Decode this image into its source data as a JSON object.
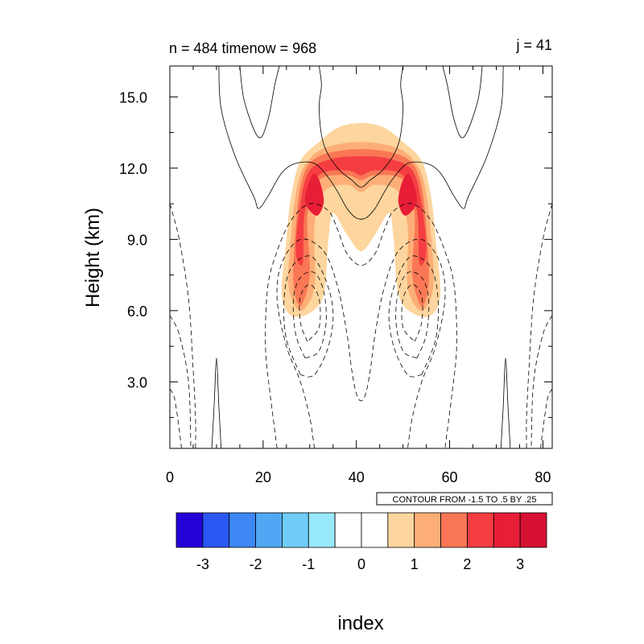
{
  "chart_data": {
    "type": "heatmap",
    "title_left": "n = 484 timenow = 968",
    "title_right": "j = 41",
    "xlabel": "index",
    "ylabel": "Height (km)",
    "xlim": [
      0,
      82
    ],
    "ylim": [
      0.2,
      16.3
    ],
    "x_ticks": [
      0,
      20,
      40,
      60,
      80
    ],
    "y_ticks": [
      3.0,
      6.0,
      9.0,
      12.0,
      15.0
    ],
    "y_tick_labels": [
      "3.0",
      "6.0",
      "9.0",
      "12.0",
      "15.0"
    ],
    "contour_info": "CONTOUR FROM -1.5 TO .5 BY .25",
    "colorbar": {
      "colors": [
        "#2500d8",
        "#2b57f4",
        "#3c87f4",
        "#50a8f4",
        "#70ccf8",
        "#99e9fc",
        "#ffffff",
        "#ffffff",
        "#fdd59e",
        "#fdae77",
        "#f97755",
        "#f43e42",
        "#e81d36",
        "#d61133"
      ],
      "tick_values": [
        -3,
        -2,
        -1,
        0,
        1,
        2,
        3
      ],
      "tick_labels": [
        "-3",
        "-2",
        "-1",
        "0",
        "1",
        "2",
        "3"
      ]
    },
    "filled_regions": [
      {
        "level": 1,
        "color": "#fdd59e",
        "points": [
          [
            24,
            6.7
          ],
          [
            25,
            9.0
          ],
          [
            26,
            10.8
          ],
          [
            28,
            12.3
          ],
          [
            32,
            13.1
          ],
          [
            36,
            13.7
          ],
          [
            41,
            13.9
          ],
          [
            46,
            13.7
          ],
          [
            50,
            13.1
          ],
          [
            54,
            12.3
          ],
          [
            56,
            10.8
          ],
          [
            57,
            9.0
          ],
          [
            58,
            6.7
          ],
          [
            56,
            5.8
          ],
          [
            52,
            5.9
          ],
          [
            49,
            6.7
          ],
          [
            48,
            9.0
          ],
          [
            47,
            10.1
          ],
          [
            44,
            9.2
          ],
          [
            41,
            8.5
          ],
          [
            38,
            9.2
          ],
          [
            35,
            10.1
          ],
          [
            34,
            9.0
          ],
          [
            33,
            6.7
          ],
          [
            30,
            5.9
          ],
          [
            26,
            5.8
          ]
        ]
      },
      {
        "level": 1.5,
        "color": "#fdae77",
        "points": [
          [
            25.5,
            7.0
          ],
          [
            26,
            9.2
          ],
          [
            27.5,
            11.4
          ],
          [
            30,
            12.4
          ],
          [
            34,
            12.9
          ],
          [
            41,
            13.1
          ],
          [
            48,
            12.9
          ],
          [
            52,
            12.4
          ],
          [
            54.5,
            11.4
          ],
          [
            56,
            9.2
          ],
          [
            56.5,
            7.0
          ],
          [
            54,
            6.0
          ],
          [
            51,
            7.0
          ],
          [
            51,
            9.5
          ],
          [
            49,
            11.0
          ],
          [
            44,
            11.3
          ],
          [
            41,
            11.0
          ],
          [
            38,
            11.3
          ],
          [
            33,
            11.0
          ],
          [
            31,
            9.5
          ],
          [
            31,
            7.0
          ],
          [
            28,
            6.0
          ]
        ]
      },
      {
        "level": 2,
        "color": "#f97755",
        "points": [
          [
            26.5,
            7.2
          ],
          [
            27,
            9.5
          ],
          [
            28.5,
            11.6
          ],
          [
            32,
            12.5
          ],
          [
            41,
            12.8
          ],
          [
            50,
            12.5
          ],
          [
            53.5,
            11.6
          ],
          [
            55,
            9.5
          ],
          [
            55.5,
            7.2
          ],
          [
            54,
            6.2
          ],
          [
            52,
            7.5
          ],
          [
            52.5,
            10.0
          ],
          [
            50,
            11.5
          ],
          [
            44,
            11.7
          ],
          [
            41,
            11.5
          ],
          [
            38,
            11.7
          ],
          [
            32,
            11.5
          ],
          [
            29.5,
            10.0
          ],
          [
            30,
            7.5
          ],
          [
            28,
            6.2
          ]
        ]
      },
      {
        "level": 2.5,
        "color": "#f43e42",
        "points": [
          [
            27,
            8.5
          ],
          [
            28,
            10.5
          ],
          [
            30,
            11.9
          ],
          [
            35,
            12.4
          ],
          [
            41,
            12.5
          ],
          [
            47,
            12.4
          ],
          [
            52,
            11.9
          ],
          [
            54,
            10.5
          ],
          [
            55,
            8.5
          ],
          [
            53.5,
            8.0
          ],
          [
            53,
            10.2
          ],
          [
            50,
            11.7
          ],
          [
            44,
            11.9
          ],
          [
            41,
            11.7
          ],
          [
            38,
            11.9
          ],
          [
            32,
            11.7
          ],
          [
            29,
            10.2
          ],
          [
            28.5,
            8.0
          ]
        ]
      },
      {
        "level": 3,
        "color": "#e81d36",
        "points": [
          [
            29,
            10.6
          ],
          [
            30.5,
            11.7
          ],
          [
            32,
            11.5
          ],
          [
            33,
            10.6
          ],
          [
            31.5,
            10.0
          ]
        ]
      },
      {
        "level": 3,
        "color": "#e81d36",
        "points": [
          [
            53,
            10.6
          ],
          [
            51.5,
            11.7
          ],
          [
            50,
            11.5
          ],
          [
            49,
            10.6
          ],
          [
            50.5,
            10.0
          ]
        ]
      }
    ],
    "contour_lines": [
      {
        "style": "solid",
        "points": [
          [
            10.5,
            16.3
          ],
          [
            11,
            14.5
          ],
          [
            14,
            12.5
          ],
          [
            18,
            10.8
          ],
          [
            19,
            10.3
          ],
          [
            21,
            10.8
          ],
          [
            24,
            11.8
          ],
          [
            27,
            12.2
          ],
          [
            31,
            12.2
          ],
          [
            34,
            11.6
          ],
          [
            36,
            11.0
          ],
          [
            38,
            10.3
          ],
          [
            40,
            9.9
          ],
          [
            42,
            9.9
          ],
          [
            44,
            10.3
          ],
          [
            46,
            11.0
          ],
          [
            48,
            11.6
          ],
          [
            51,
            12.2
          ],
          [
            55,
            12.2
          ],
          [
            58,
            11.8
          ],
          [
            61,
            10.8
          ],
          [
            63,
            10.3
          ],
          [
            64,
            10.8
          ],
          [
            68,
            12.5
          ],
          [
            71,
            14.5
          ],
          [
            71.5,
            16.3
          ]
        ]
      },
      {
        "style": "solid",
        "points": [
          [
            15,
            16.3
          ],
          [
            16,
            14.8
          ],
          [
            19,
            13.3
          ],
          [
            21,
            14.0
          ],
          [
            22.5,
            15.5
          ],
          [
            23.5,
            16.3
          ]
        ]
      },
      {
        "style": "solid",
        "points": [
          [
            58.5,
            16.3
          ],
          [
            59.5,
            15.5
          ],
          [
            61,
            14.0
          ],
          [
            63,
            13.3
          ],
          [
            66,
            14.8
          ],
          [
            67,
            16.3
          ]
        ]
      },
      {
        "style": "solid",
        "points": [
          [
            32,
            16.3
          ],
          [
            32.5,
            15.5
          ],
          [
            32,
            14.5
          ],
          [
            33,
            13.0
          ],
          [
            36,
            12.0
          ],
          [
            39,
            11.5
          ],
          [
            41,
            11.2
          ],
          [
            43,
            11.5
          ],
          [
            46,
            12.0
          ],
          [
            49,
            13.0
          ],
          [
            50,
            14.5
          ],
          [
            49.5,
            15.5
          ],
          [
            50,
            16.3
          ]
        ]
      },
      {
        "style": "solid",
        "points": [
          [
            9,
            0.2
          ],
          [
            9.5,
            2.0
          ],
          [
            10,
            4.0
          ],
          [
            10.5,
            2.0
          ],
          [
            11,
            0.2
          ]
        ]
      },
      {
        "style": "solid",
        "points": [
          [
            71,
            0.2
          ],
          [
            71.5,
            2.0
          ],
          [
            72,
            4.0
          ],
          [
            72.5,
            2.0
          ],
          [
            73,
            0.2
          ]
        ]
      },
      {
        "style": "dashed",
        "points": [
          [
            23,
            0.2
          ],
          [
            21.5,
            2.5
          ],
          [
            20.5,
            4.5
          ],
          [
            21,
            7.0
          ],
          [
            23,
            8.5
          ],
          [
            26,
            9.8
          ],
          [
            30,
            10.5
          ],
          [
            34,
            10.2
          ],
          [
            36,
            9.4
          ],
          [
            38,
            8.4
          ],
          [
            41,
            7.9
          ],
          [
            44,
            8.4
          ],
          [
            46,
            9.4
          ],
          [
            48,
            10.2
          ],
          [
            52,
            10.5
          ],
          [
            56,
            9.8
          ],
          [
            59,
            8.5
          ],
          [
            61,
            7.0
          ],
          [
            61.5,
            4.5
          ],
          [
            60.5,
            2.5
          ],
          [
            59,
            0.2
          ]
        ]
      },
      {
        "style": "dashed",
        "points": [
          [
            31,
            0.2
          ],
          [
            30,
            1.5
          ],
          [
            28,
            3.0
          ],
          [
            25,
            4.5
          ],
          [
            23,
            6.5
          ],
          [
            24,
            8.0
          ],
          [
            28,
            9.0
          ],
          [
            33,
            8.5
          ],
          [
            36,
            7.0
          ],
          [
            38,
            5.0
          ],
          [
            39,
            3.5
          ],
          [
            40,
            2.5
          ],
          [
            41,
            2.2
          ],
          [
            42,
            2.5
          ],
          [
            43,
            3.5
          ],
          [
            44,
            5.0
          ],
          [
            46,
            7.0
          ],
          [
            49,
            8.5
          ],
          [
            54,
            9.0
          ],
          [
            58,
            8.0
          ],
          [
            59,
            6.5
          ],
          [
            57,
            4.5
          ],
          [
            54,
            3.0
          ],
          [
            52,
            1.5
          ],
          [
            51,
            0.2
          ]
        ]
      },
      {
        "style": "dashed",
        "points": [
          [
            28,
            3.3
          ],
          [
            25,
            4.8
          ],
          [
            24.5,
            6.5
          ],
          [
            26,
            7.8
          ],
          [
            30,
            8.3
          ],
          [
            33,
            7.5
          ],
          [
            35,
            6.0
          ],
          [
            34,
            4.5
          ],
          [
            31,
            3.3
          ],
          [
            28,
            3.3
          ]
        ]
      },
      {
        "style": "dashed",
        "points": [
          [
            54,
            3.3
          ],
          [
            57,
            4.8
          ],
          [
            57.5,
            6.5
          ],
          [
            56,
            7.8
          ],
          [
            52,
            8.3
          ],
          [
            49,
            7.5
          ],
          [
            47,
            6.0
          ],
          [
            48,
            4.5
          ],
          [
            51,
            3.3
          ],
          [
            54,
            3.3
          ]
        ]
      },
      {
        "style": "dashed",
        "points": [
          [
            29,
            4.0
          ],
          [
            27,
            5.0
          ],
          [
            26.5,
            6.5
          ],
          [
            28,
            7.4
          ],
          [
            31,
            7.6
          ],
          [
            33,
            6.8
          ],
          [
            33.5,
            5.5
          ],
          [
            32,
            4.3
          ],
          [
            29,
            4.0
          ]
        ]
      },
      {
        "style": "dashed",
        "points": [
          [
            53,
            4.0
          ],
          [
            55,
            5.0
          ],
          [
            55.5,
            6.5
          ],
          [
            54,
            7.4
          ],
          [
            51,
            7.6
          ],
          [
            49,
            6.8
          ],
          [
            48.5,
            5.5
          ],
          [
            50,
            4.3
          ],
          [
            53,
            4.0
          ]
        ]
      },
      {
        "style": "dashed",
        "points": [
          [
            29.5,
            4.7
          ],
          [
            28,
            5.5
          ],
          [
            28,
            6.6
          ],
          [
            30,
            7.1
          ],
          [
            32,
            6.5
          ],
          [
            32,
            5.3
          ],
          [
            29.5,
            4.7
          ]
        ]
      },
      {
        "style": "dashed",
        "points": [
          [
            52.5,
            4.7
          ],
          [
            54,
            5.5
          ],
          [
            54,
            6.6
          ],
          [
            52,
            7.1
          ],
          [
            50,
            6.5
          ],
          [
            50,
            5.3
          ],
          [
            52.5,
            4.7
          ]
        ]
      },
      {
        "style": "dashed",
        "points": [
          [
            0,
            10.5
          ],
          [
            2,
            9.0
          ],
          [
            4,
            6.5
          ],
          [
            5,
            3.5
          ],
          [
            5.5,
            1.5
          ],
          [
            5.5,
            0.2
          ]
        ]
      },
      {
        "style": "dashed",
        "points": [
          [
            0,
            5.8
          ],
          [
            2,
            5.0
          ],
          [
            4,
            3.0
          ],
          [
            4.5,
            0.2
          ]
        ]
      },
      {
        "style": "dashed",
        "points": [
          [
            0,
            2.7
          ],
          [
            1,
            2.3
          ],
          [
            2,
            1.0
          ],
          [
            2.5,
            0.2
          ]
        ]
      },
      {
        "style": "dashed",
        "points": [
          [
            82,
            10.5
          ],
          [
            80,
            9.0
          ],
          [
            78,
            6.5
          ],
          [
            77,
            3.5
          ],
          [
            76.5,
            1.5
          ],
          [
            76.5,
            0.2
          ]
        ]
      },
      {
        "style": "dashed",
        "points": [
          [
            82,
            5.8
          ],
          [
            80,
            5.0
          ],
          [
            78,
            3.0
          ],
          [
            77.5,
            0.2
          ]
        ]
      },
      {
        "style": "dashed",
        "points": [
          [
            82,
            2.7
          ],
          [
            81,
            2.3
          ],
          [
            80,
            1.0
          ],
          [
            79.5,
            0.2
          ]
        ]
      }
    ]
  }
}
